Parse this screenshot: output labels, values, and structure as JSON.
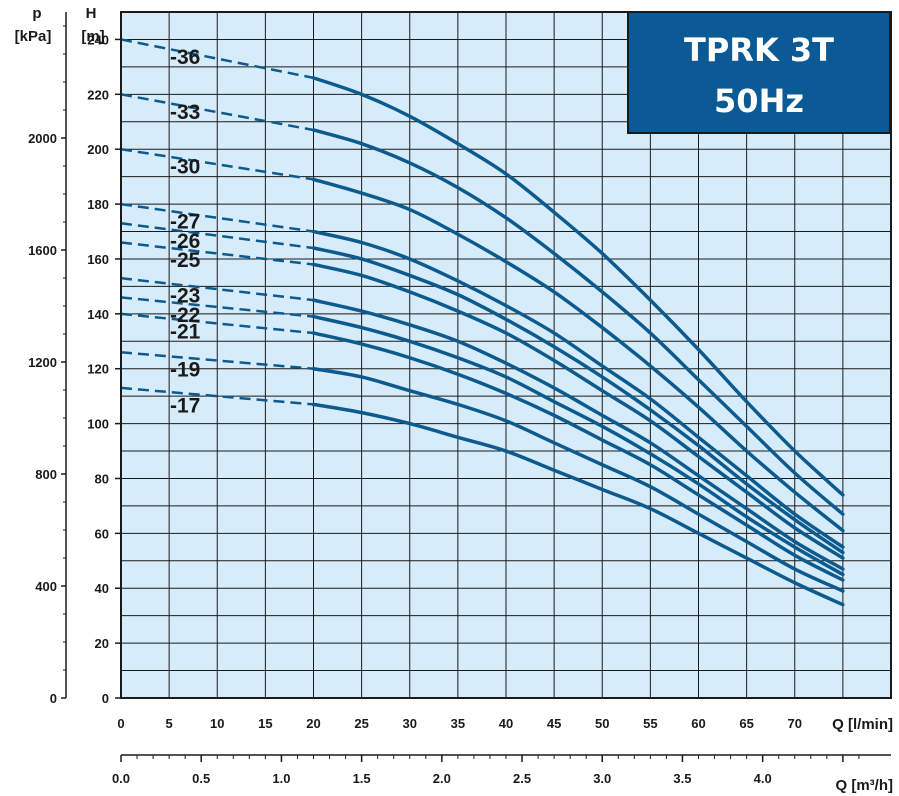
{
  "chart_data": {
    "type": "line",
    "title": "TPRK 3T",
    "subtitle": "50Hz",
    "colors": {
      "background": "#d6ecfa",
      "grid": "#1a1a1a",
      "curve": "#0d5a8e",
      "title_box": "#0b5a96"
    },
    "grid": true,
    "x_axis": {
      "label": "Q [l/min]",
      "range": [
        0,
        80
      ],
      "ticks": [
        0,
        5,
        10,
        15,
        20,
        25,
        30,
        35,
        40,
        45,
        50,
        55,
        60,
        65,
        70
      ]
    },
    "x2_axis": {
      "label": "Q [m³/h]",
      "range": [
        0,
        4.8
      ],
      "ticks": [
        "0.0",
        "0.5",
        "1.0",
        "1.5",
        "2.0",
        "2.5",
        "3.0",
        "3.5",
        "4.0"
      ]
    },
    "y_axis": {
      "label_top": "H",
      "label_bottom": "[m]",
      "range": [
        0,
        250
      ],
      "ticks": [
        0,
        20,
        40,
        60,
        80,
        100,
        120,
        140,
        160,
        180,
        200,
        220,
        240
      ]
    },
    "y2_axis": {
      "label_top": "p",
      "label_bottom": "[kPa]",
      "range": [
        0,
        2450
      ],
      "ticks": [
        0,
        400,
        800,
        1200,
        1600,
        2000
      ]
    },
    "series": [
      {
        "name": "-36",
        "shutoff": 240,
        "dashed_until": 20,
        "points": [
          [
            20,
            226
          ],
          [
            25,
            220
          ],
          [
            30,
            212
          ],
          [
            35,
            202
          ],
          [
            40,
            191
          ],
          [
            45,
            177
          ],
          [
            50,
            162
          ],
          [
            55,
            145
          ],
          [
            60,
            127
          ],
          [
            65,
            108
          ],
          [
            70,
            90
          ],
          [
            75,
            74
          ]
        ]
      },
      {
        "name": "-33",
        "shutoff": 220,
        "dashed_until": 20,
        "points": [
          [
            20,
            207
          ],
          [
            25,
            202
          ],
          [
            30,
            195
          ],
          [
            35,
            186
          ],
          [
            40,
            175
          ],
          [
            45,
            162
          ],
          [
            50,
            148
          ],
          [
            55,
            133
          ],
          [
            60,
            116
          ],
          [
            65,
            99
          ],
          [
            70,
            82
          ],
          [
            75,
            67
          ]
        ]
      },
      {
        "name": "-30",
        "shutoff": 200,
        "dashed_until": 20,
        "points": [
          [
            20,
            189
          ],
          [
            25,
            184
          ],
          [
            30,
            178
          ],
          [
            35,
            169
          ],
          [
            40,
            159
          ],
          [
            45,
            148
          ],
          [
            50,
            135
          ],
          [
            55,
            121
          ],
          [
            60,
            106
          ],
          [
            65,
            90
          ],
          [
            70,
            75
          ],
          [
            75,
            61
          ]
        ]
      },
      {
        "name": "-27",
        "shutoff": 180,
        "dashed_until": 20,
        "points": [
          [
            20,
            170
          ],
          [
            25,
            166
          ],
          [
            30,
            160
          ],
          [
            35,
            152
          ],
          [
            40,
            143
          ],
          [
            45,
            133
          ],
          [
            50,
            121
          ],
          [
            55,
            109
          ],
          [
            60,
            95
          ],
          [
            65,
            81
          ],
          [
            70,
            67
          ],
          [
            75,
            55
          ]
        ]
      },
      {
        "name": "-26",
        "shutoff": 173,
        "dashed_until": 20,
        "points": [
          [
            20,
            164
          ],
          [
            25,
            160
          ],
          [
            30,
            154
          ],
          [
            35,
            147
          ],
          [
            40,
            138
          ],
          [
            45,
            128
          ],
          [
            50,
            117
          ],
          [
            55,
            105
          ],
          [
            60,
            92
          ],
          [
            65,
            78
          ],
          [
            70,
            65
          ],
          [
            75,
            53
          ]
        ]
      },
      {
        "name": "-25",
        "shutoff": 166,
        "dashed_until": 20,
        "points": [
          [
            20,
            158
          ],
          [
            25,
            154
          ],
          [
            30,
            148
          ],
          [
            35,
            141
          ],
          [
            40,
            133
          ],
          [
            45,
            123
          ],
          [
            50,
            112
          ],
          [
            55,
            101
          ],
          [
            60,
            88
          ],
          [
            65,
            75
          ],
          [
            70,
            62
          ],
          [
            75,
            51
          ]
        ]
      },
      {
        "name": "-23",
        "shutoff": 153,
        "dashed_until": 20,
        "points": [
          [
            20,
            145
          ],
          [
            25,
            141
          ],
          [
            30,
            136
          ],
          [
            35,
            130
          ],
          [
            40,
            122
          ],
          [
            45,
            113
          ],
          [
            50,
            103
          ],
          [
            55,
            93
          ],
          [
            60,
            81
          ],
          [
            65,
            69
          ],
          [
            70,
            57
          ],
          [
            75,
            47
          ]
        ]
      },
      {
        "name": "-22",
        "shutoff": 146,
        "dashed_until": 20,
        "points": [
          [
            20,
            139
          ],
          [
            25,
            135
          ],
          [
            30,
            130
          ],
          [
            35,
            124
          ],
          [
            40,
            117
          ],
          [
            45,
            108
          ],
          [
            50,
            99
          ],
          [
            55,
            89
          ],
          [
            60,
            78
          ],
          [
            65,
            66
          ],
          [
            70,
            55
          ],
          [
            75,
            45
          ]
        ]
      },
      {
        "name": "-21",
        "shutoff": 140,
        "dashed_until": 20,
        "points": [
          [
            20,
            133
          ],
          [
            25,
            129
          ],
          [
            30,
            124
          ],
          [
            35,
            118
          ],
          [
            40,
            111
          ],
          [
            45,
            103
          ],
          [
            50,
            94
          ],
          [
            55,
            85
          ],
          [
            60,
            74
          ],
          [
            65,
            63
          ],
          [
            70,
            52
          ],
          [
            75,
            43
          ]
        ]
      },
      {
        "name": "-19",
        "shutoff": 126,
        "dashed_until": 20,
        "points": [
          [
            20,
            120
          ],
          [
            25,
            117
          ],
          [
            30,
            112
          ],
          [
            35,
            107
          ],
          [
            40,
            101
          ],
          [
            45,
            93
          ],
          [
            50,
            85
          ],
          [
            55,
            77
          ],
          [
            60,
            67
          ],
          [
            65,
            57
          ],
          [
            70,
            47
          ],
          [
            75,
            39
          ]
        ]
      },
      {
        "name": "-17",
        "shutoff": 113,
        "dashed_until": 20,
        "points": [
          [
            20,
            107
          ],
          [
            25,
            104
          ],
          [
            30,
            100
          ],
          [
            35,
            95
          ],
          [
            40,
            90
          ],
          [
            45,
            83
          ],
          [
            50,
            76
          ],
          [
            55,
            69
          ],
          [
            60,
            60
          ],
          [
            65,
            51
          ],
          [
            70,
            42
          ],
          [
            75,
            34
          ]
        ]
      }
    ]
  }
}
